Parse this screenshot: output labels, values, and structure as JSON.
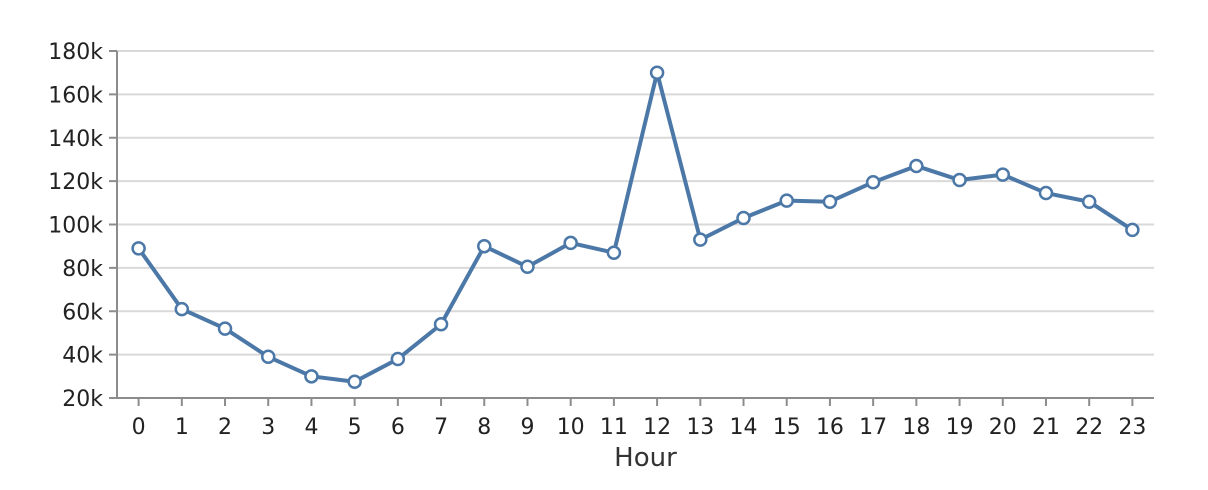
{
  "chart_data": {
    "type": "line",
    "title": "",
    "xlabel": "Hour",
    "ylabel": "",
    "x": [
      0,
      1,
      2,
      3,
      4,
      5,
      6,
      7,
      8,
      9,
      10,
      11,
      12,
      13,
      14,
      15,
      16,
      17,
      18,
      19,
      20,
      21,
      22,
      23
    ],
    "series": [
      {
        "values": [
          89000,
          61000,
          52000,
          39000,
          30000,
          27500,
          38000,
          54000,
          90000,
          80500,
          91500,
          87000,
          170000,
          93000,
          103000,
          111000,
          110500,
          119500,
          127000,
          120500,
          123000,
          114500,
          110500,
          97500
        ]
      }
    ],
    "x_tick_labels": [
      "0",
      "1",
      "2",
      "3",
      "4",
      "5",
      "6",
      "7",
      "8",
      "9",
      "10",
      "11",
      "12",
      "13",
      "14",
      "15",
      "16",
      "17",
      "18",
      "19",
      "20",
      "21",
      "22",
      "23"
    ],
    "y_ticks": [
      20000,
      40000,
      60000,
      80000,
      100000,
      120000,
      140000,
      160000,
      180000
    ],
    "y_tick_labels": [
      "20k",
      "40k",
      "60k",
      "80k",
      "100k",
      "120k",
      "140k",
      "160k",
      "180k"
    ],
    "ylim": [
      20000,
      180000
    ],
    "grid": true,
    "colors": {
      "line": "#4c78a8"
    }
  }
}
